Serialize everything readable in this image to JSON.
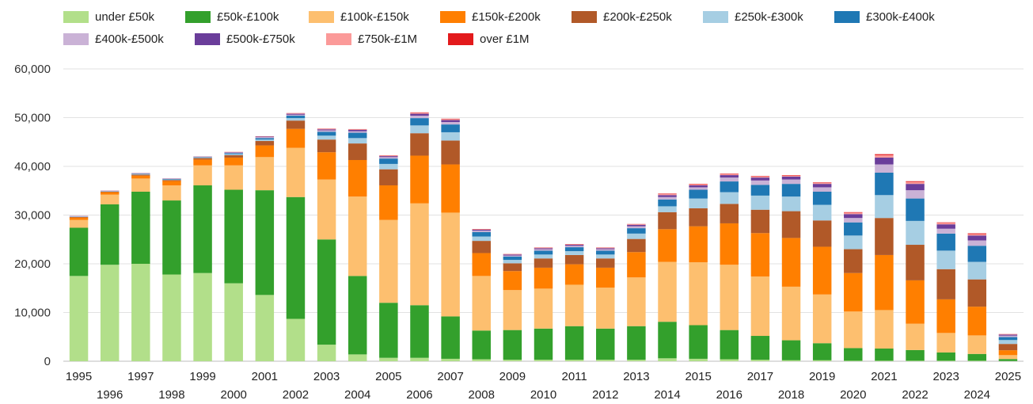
{
  "chart_data": {
    "type": "bar",
    "stacked": true,
    "title": "",
    "xlabel": "",
    "ylabel": "",
    "ylim": [
      0,
      60000
    ],
    "yticks": [
      0,
      10000,
      20000,
      30000,
      40000,
      50000,
      60000
    ],
    "ytick_labels": [
      "0",
      "10,000",
      "20,000",
      "30,000",
      "40,000",
      "50,000",
      "60,000"
    ],
    "grid": true,
    "legend_position": "top",
    "categories": [
      "1995",
      "1996",
      "1997",
      "1998",
      "1999",
      "2000",
      "2001",
      "2002",
      "2003",
      "2004",
      "2005",
      "2006",
      "2007",
      "2008",
      "2009",
      "2010",
      "2011",
      "2012",
      "2013",
      "2014",
      "2015",
      "2016",
      "2017",
      "2018",
      "2019",
      "2020",
      "2021",
      "2022",
      "2023",
      "2024",
      "2025"
    ],
    "series": [
      {
        "name": "under £50k",
        "color": "#b2df8a",
        "values": [
          17500,
          19800,
          20000,
          17800,
          18100,
          16000,
          13600,
          8700,
          3400,
          1400,
          700,
          700,
          500,
          400,
          300,
          300,
          300,
          300,
          300,
          600,
          500,
          400,
          300,
          200,
          200,
          100,
          100,
          100,
          100,
          100,
          50
        ]
      },
      {
        "name": "£50k-£100k",
        "color": "#33a02c",
        "values": [
          9900,
          12400,
          14800,
          15200,
          18000,
          19200,
          21500,
          25000,
          21600,
          16100,
          11300,
          10800,
          8700,
          5900,
          6100,
          6400,
          6900,
          6400,
          6900,
          7500,
          6900,
          6000,
          4900,
          4100,
          3500,
          2600,
          2500,
          2200,
          1700,
          1400,
          400
        ]
      },
      {
        "name": "£100k-£150k",
        "color": "#fdbf6f",
        "values": [
          1600,
          2000,
          2700,
          3100,
          4100,
          5000,
          6800,
          10100,
          12300,
          16300,
          17000,
          20900,
          21300,
          11200,
          8200,
          8200,
          8500,
          8400,
          10000,
          12300,
          12900,
          13400,
          12200,
          11000,
          10000,
          7500,
          7900,
          5400,
          4000,
          3800,
          800
        ]
      },
      {
        "name": "£150k-£200k",
        "color": "#ff7f00",
        "values": [
          500,
          500,
          600,
          900,
          1200,
          1600,
          2400,
          3900,
          5600,
          7500,
          7100,
          9800,
          9900,
          4700,
          3900,
          4300,
          4200,
          4100,
          5200,
          6700,
          7400,
          8500,
          8900,
          10000,
          9800,
          7900,
          11300,
          8900,
          6900,
          5900,
          1000
        ]
      },
      {
        "name": "£200k-£250k",
        "color": "#b15928",
        "values": [
          100,
          100,
          200,
          200,
          300,
          500,
          900,
          1700,
          2600,
          3400,
          3300,
          4600,
          4900,
          2500,
          1600,
          1900,
          1900,
          1900,
          2700,
          3500,
          3700,
          4000,
          4800,
          5500,
          5400,
          4900,
          7600,
          7300,
          6200,
          5600,
          1300
        ]
      },
      {
        "name": "£250k-£300k",
        "color": "#a6cee3",
        "values": [
          50,
          50,
          100,
          100,
          100,
          200,
          300,
          500,
          800,
          1100,
          1100,
          1600,
          1700,
          900,
          700,
          800,
          800,
          800,
          1100,
          1200,
          2000,
          2400,
          2900,
          3000,
          3200,
          2800,
          4700,
          4900,
          3800,
          3600,
          800
        ]
      },
      {
        "name": "£300k-£400k",
        "color": "#1f78b4",
        "values": [
          50,
          50,
          100,
          100,
          100,
          200,
          300,
          500,
          800,
          1100,
          1100,
          1500,
          1600,
          900,
          700,
          800,
          800,
          800,
          1100,
          1400,
          1800,
          2200,
          2200,
          2600,
          2700,
          2700,
          4600,
          4600,
          3500,
          3300,
          600
        ]
      },
      {
        "name": "£400k-£500k",
        "color": "#cab2d6",
        "values": [
          50,
          50,
          50,
          50,
          50,
          100,
          200,
          200,
          300,
          300,
          300,
          500,
          500,
          300,
          200,
          300,
          300,
          300,
          400,
          500,
          500,
          800,
          900,
          900,
          900,
          900,
          1700,
          1700,
          1000,
          1100,
          300
        ]
      },
      {
        "name": "£500k-£750k",
        "color": "#6a3d9a",
        "values": [
          50,
          50,
          50,
          50,
          50,
          100,
          100,
          200,
          200,
          300,
          200,
          400,
          400,
          200,
          200,
          200,
          200,
          200,
          300,
          400,
          400,
          500,
          600,
          600,
          700,
          800,
          1400,
          1300,
          900,
          1000,
          200
        ]
      },
      {
        "name": "£750k-£1M",
        "color": "#fb9a99",
        "values": [
          20,
          20,
          20,
          20,
          20,
          50,
          50,
          100,
          100,
          100,
          100,
          200,
          200,
          100,
          100,
          100,
          100,
          100,
          100,
          200,
          200,
          200,
          200,
          200,
          200,
          300,
          500,
          400,
          300,
          300,
          100
        ]
      },
      {
        "name": "over £1M",
        "color": "#e31a1c",
        "values": [
          10,
          10,
          10,
          10,
          10,
          20,
          30,
          30,
          50,
          50,
          50,
          80,
          80,
          50,
          30,
          50,
          50,
          50,
          60,
          100,
          100,
          100,
          100,
          100,
          100,
          100,
          200,
          150,
          100,
          150,
          30
        ]
      }
    ]
  }
}
